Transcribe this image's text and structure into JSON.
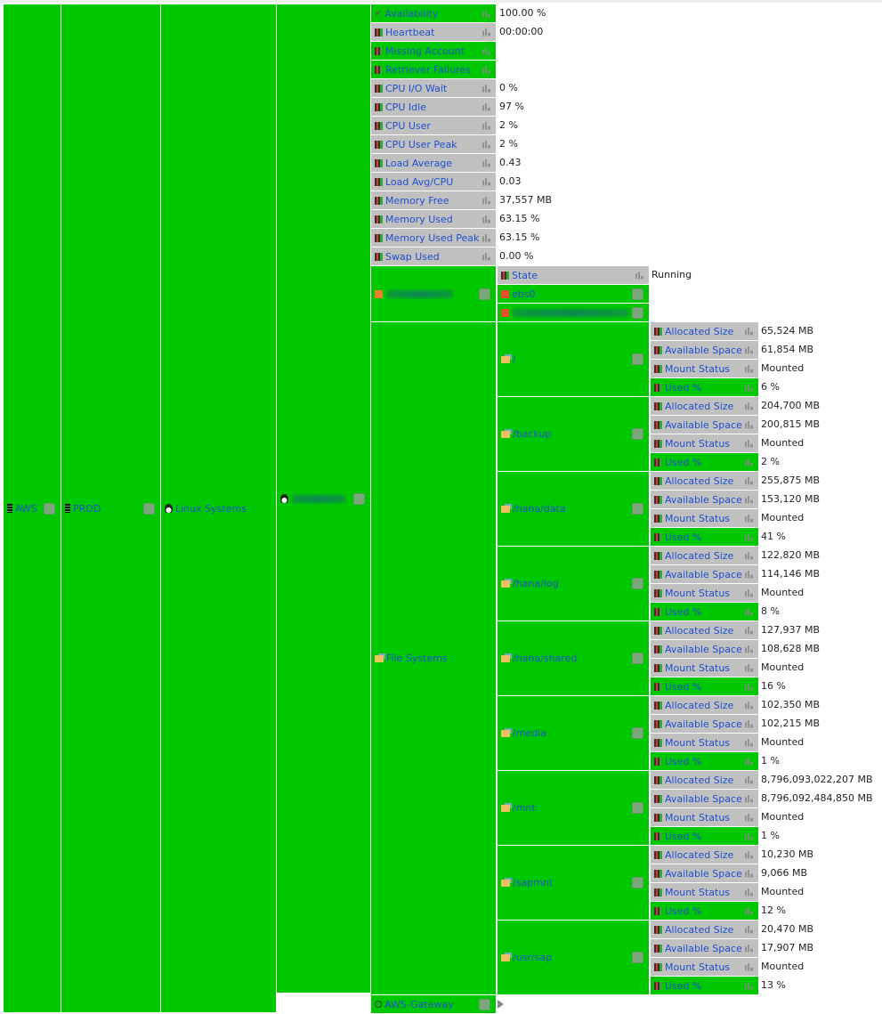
{
  "tree": {
    "aws": "AWS",
    "prod": "PROD",
    "linux": "Linux Systems",
    "gateway": "AWS-Gateway"
  },
  "host_metrics": [
    {
      "label": "Availability",
      "value": "100.00 %",
      "status": "green",
      "icon": "check-icon"
    },
    {
      "label": "Heartbeat",
      "value": "00:00:00",
      "status": "grey"
    },
    {
      "label": "Missing Account",
      "value": "",
      "status": "green"
    },
    {
      "label": "Retriever Failures",
      "value": "",
      "status": "green"
    },
    {
      "label": "CPU I/O Wait",
      "value": "0 %",
      "status": "grey"
    },
    {
      "label": "CPU Idle",
      "value": "97 %",
      "status": "grey"
    },
    {
      "label": "CPU User",
      "value": "2 %",
      "status": "grey"
    },
    {
      "label": "CPU User Peak",
      "value": "2 %",
      "status": "grey"
    },
    {
      "label": "Load Average",
      "value": "0.43",
      "status": "grey"
    },
    {
      "label": "Load Avg/CPU",
      "value": "0.03",
      "status": "grey"
    },
    {
      "label": "Memory Free",
      "value": "37,557 MB",
      "status": "grey"
    },
    {
      "label": "Memory Used",
      "value": "63.15 %",
      "status": "grey"
    },
    {
      "label": "Memory Used Peak",
      "value": "63.15 %",
      "status": "grey"
    },
    {
      "label": "Swap Used",
      "value": "0.00 %",
      "status": "grey"
    }
  ],
  "instance": {
    "state_label": "State",
    "state_value": "Running",
    "volume": "ebs0"
  },
  "file_systems_label": "File Systems",
  "metric_labels": [
    "Allocated Size",
    "Available Space",
    "Mount Status",
    "Used %"
  ],
  "file_systems": [
    {
      "name": "/",
      "values": [
        "65,524 MB",
        "61,854 MB",
        "Mounted",
        "6 %"
      ]
    },
    {
      "name": "/backup",
      "values": [
        "204,700 MB",
        "200,815 MB",
        "Mounted",
        "2 %"
      ]
    },
    {
      "name": "/hana/data",
      "values": [
        "255,875 MB",
        "153,120 MB",
        "Mounted",
        "41 %"
      ]
    },
    {
      "name": "/hana/log",
      "values": [
        "122,820 MB",
        "114,146 MB",
        "Mounted",
        "8 %"
      ]
    },
    {
      "name": "/hana/shared",
      "values": [
        "127,937 MB",
        "108,628 MB",
        "Mounted",
        "16 %"
      ]
    },
    {
      "name": "/media",
      "values": [
        "102,350 MB",
        "102,215 MB",
        "Mounted",
        "1 %"
      ]
    },
    {
      "name": "/mnt",
      "values": [
        "8,796,093,022,207 MB",
        "8,796,092,484,850 MB",
        "Mounted",
        "1 %"
      ]
    },
    {
      "name": "/sapmnt",
      "values": [
        "10,230 MB",
        "9,066 MB",
        "Mounted",
        "12 %"
      ]
    },
    {
      "name": "/usr/sap",
      "values": [
        "20,470 MB",
        "17,907 MB",
        "Mounted",
        "13 %"
      ]
    }
  ],
  "colors": {
    "ok": "#00c800",
    "neutral": "#c0c0c0",
    "link": "#1f4fd0"
  }
}
